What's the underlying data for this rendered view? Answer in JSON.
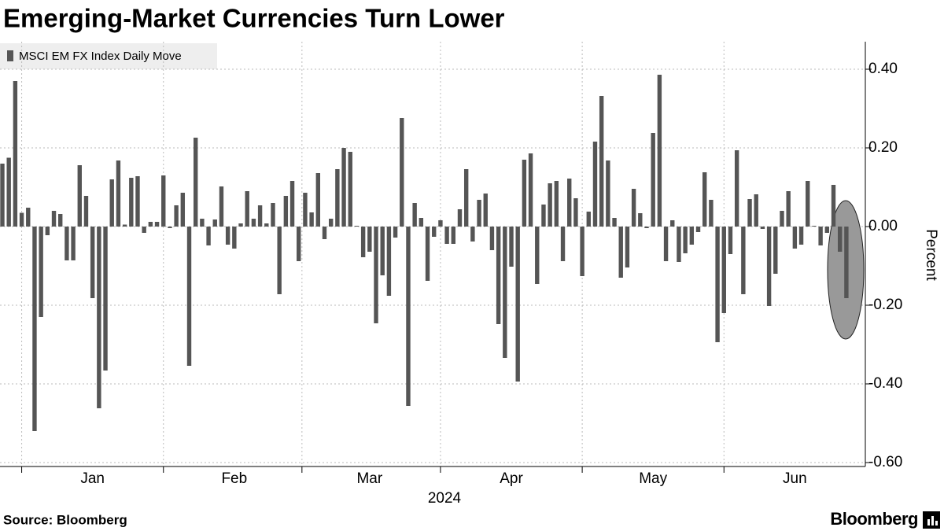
{
  "chart_data": {
    "type": "bar",
    "title": "Emerging-Market Currencies Turn Lower",
    "series": [
      {
        "name": "MSCI EM FX Index Daily Move",
        "color": "#555555",
        "values": [
          0.16,
          0.175,
          0.37,
          0.035,
          0.048,
          -0.52,
          -0.23,
          -0.022,
          0.04,
          0.032,
          -0.086,
          -0.086,
          0.156,
          0.078,
          -0.182,
          -0.462,
          -0.366,
          0.12,
          0.168,
          0.005,
          0.124,
          0.128,
          -0.016,
          0.012,
          0.012,
          0.13,
          -0.004,
          0.054,
          0.086,
          -0.354,
          0.226,
          0.02,
          -0.048,
          0.018,
          0.102,
          -0.046,
          -0.056,
          0.008,
          0.09,
          0.02,
          0.054,
          0.008,
          0.06,
          -0.172,
          0.078,
          0.116,
          -0.088,
          0.086,
          0.036,
          0.136,
          -0.032,
          0.02,
          0.146,
          0.2,
          0.19,
          0.002,
          -0.078,
          -0.064,
          -0.246,
          -0.124,
          -0.176,
          -0.028,
          0.276,
          -0.456,
          0.06,
          0.022,
          -0.138,
          -0.026,
          0.016,
          -0.044,
          -0.044,
          0.044,
          0.146,
          -0.038,
          0.068,
          0.084,
          -0.06,
          -0.248,
          -0.334,
          -0.102,
          -0.394,
          0.17,
          0.186,
          -0.146,
          0.056,
          0.11,
          0.116,
          -0.088,
          0.122,
          0.072,
          -0.126,
          0.038,
          0.216,
          0.332,
          0.168,
          0.022,
          -0.13,
          -0.104,
          0.096,
          0.034,
          -0.004,
          0.238,
          0.386,
          -0.088,
          0.016,
          -0.09,
          -0.068,
          -0.046,
          -0.014,
          0.138,
          0.068,
          -0.294,
          -0.22,
          -0.07,
          0.194,
          -0.172,
          0.07,
          0.082,
          -0.006,
          -0.202,
          -0.12,
          0.04,
          0.09,
          -0.056,
          -0.046,
          0.116,
          0.002,
          -0.048,
          -0.016,
          0.106,
          -0.064,
          -0.182
        ]
      }
    ],
    "categories": [
      null,
      null,
      null,
      null,
      null,
      null,
      null,
      null,
      null,
      null,
      null,
      null,
      null,
      null,
      "Jan",
      null,
      null,
      null,
      null,
      null,
      null,
      null,
      null,
      null,
      null,
      null,
      null,
      null,
      null,
      null,
      null,
      null,
      null,
      null,
      null,
      null,
      "Feb",
      null,
      null,
      null,
      null,
      null,
      null,
      null,
      null,
      null,
      null,
      null,
      null,
      null,
      null,
      null,
      null,
      null,
      null,
      null,
      null,
      "Mar",
      null,
      null,
      null,
      null,
      null,
      null,
      null,
      null,
      null,
      null,
      null,
      null,
      null,
      null,
      null,
      null,
      null,
      null,
      null,
      null,
      null,
      "Apr",
      null,
      null,
      null,
      null,
      null,
      null,
      null,
      null,
      null,
      null,
      null,
      null,
      null,
      null,
      null,
      null,
      null,
      null,
      null,
      null,
      null,
      "May",
      null,
      null,
      null,
      null,
      null,
      null,
      null,
      null,
      null,
      null,
      null,
      null,
      null,
      null,
      null,
      null,
      null,
      null,
      null,
      null,
      null,
      "Jun",
      null,
      null,
      null,
      null,
      null,
      null,
      null,
      null
    ],
    "x_label": "2024",
    "y_label": "Percent",
    "ylim": [
      -0.61,
      0.47
    ],
    "yticks": [
      {
        "value": 0.4,
        "label": "0.40"
      },
      {
        "value": 0.2,
        "label": "0.20"
      },
      {
        "value": 0,
        "label": "0.00"
      },
      {
        "value": -0.2,
        "label": "-0.20"
      },
      {
        "value": -0.4,
        "label": "-0.40"
      },
      {
        "value": -0.6,
        "label": "-0.60"
      }
    ],
    "grid": true,
    "source": "Source: Bloomberg",
    "brand": "Bloomberg"
  }
}
